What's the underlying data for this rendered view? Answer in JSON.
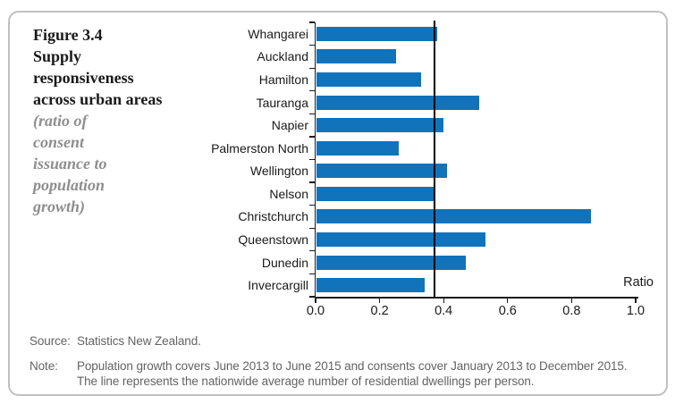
{
  "figure": {
    "label": "Figure 3.4",
    "title": "Supply responsiveness across urban areas",
    "subtitle": "(ratio of consent issuance to population growth)"
  },
  "chart_data": {
    "type": "bar",
    "orientation": "horizontal",
    "categories": [
      "Whangarei",
      "Auckland",
      "Hamilton",
      "Tauranga",
      "Napier",
      "Palmerston North",
      "Wellington",
      "Nelson",
      "Christchurch",
      "Queenstown",
      "Dunedin",
      "Invercargill"
    ],
    "values": [
      0.38,
      0.25,
      0.33,
      0.51,
      0.4,
      0.26,
      0.41,
      0.37,
      0.86,
      0.53,
      0.47,
      0.34
    ],
    "xlabel": "Ratio",
    "xlim": [
      0,
      1.0
    ],
    "xticks": [
      0,
      0.2,
      0.4,
      0.6,
      0.8,
      1.0
    ],
    "xtick_labels": [
      "0.0",
      "0.2",
      "0.4",
      "0.6",
      "0.8",
      "1.0"
    ],
    "reference_line": 0.372,
    "bar_color": "#1173BB",
    "axis_color": "#1a1a1a",
    "grid": false,
    "legend": "none"
  },
  "footer": {
    "source_label": "Source:",
    "source_text": "Statistics New Zealand.",
    "note_label": "Note:",
    "note_text": "Population growth covers June 2013 to June 2015 and consents cover January 2013 to December 2015. The line represents the nationwide average number of residential dwellings per person."
  }
}
